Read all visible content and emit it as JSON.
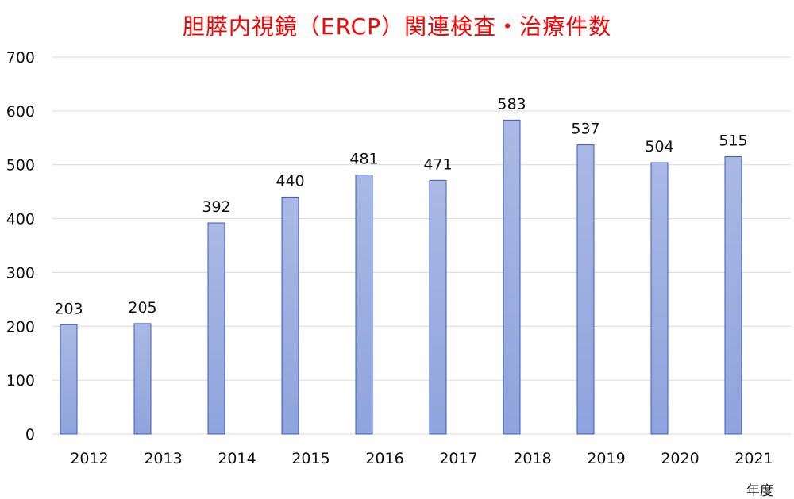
{
  "chart_data": {
    "type": "bar",
    "title": "胆膵内視鏡（ERCP）関連検査・治療件数",
    "xlabel": "年度",
    "ylabel": "",
    "categories": [
      "2012",
      "2013",
      "2014",
      "2015",
      "2016",
      "2017",
      "2018",
      "2019",
      "2020",
      "2021"
    ],
    "values": [
      203,
      205,
      392,
      440,
      481,
      471,
      583,
      537,
      504,
      515
    ],
    "ylim": [
      0,
      700
    ],
    "yticks": [
      0,
      100,
      200,
      300,
      400,
      500,
      600,
      700
    ],
    "grid": true,
    "legend": "none",
    "colors": {
      "title": "#ff0000",
      "bar_top": "#aab9e4",
      "bar_bottom": "#8fa4dd",
      "bar_stroke": "#3a5bc5",
      "grid": "#d9d9d9",
      "text": "#111111"
    }
  }
}
